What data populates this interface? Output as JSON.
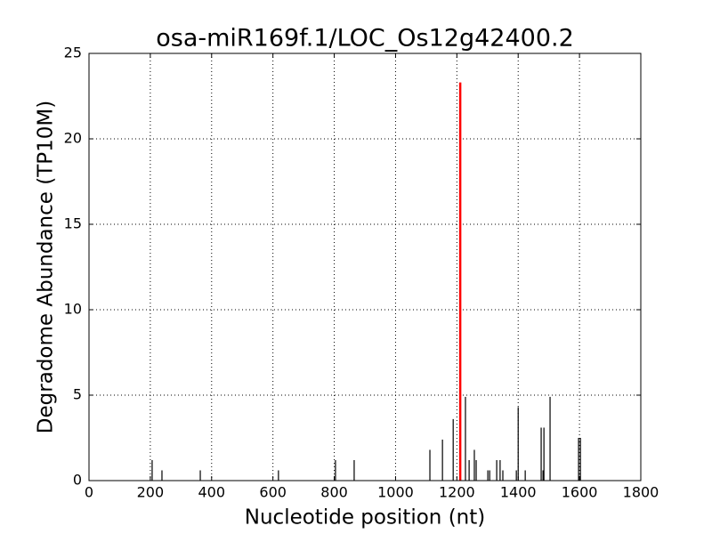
{
  "chart_data": {
    "type": "stem",
    "title": "osa-miR169f.1/LOC_Os12g42400.2",
    "x_label": "Nucleotide position (nt)",
    "y_label": "Degradome Abundance (TP10M)",
    "series": [
      {
        "color": "#000000",
        "x": [
          206,
          238,
          363,
          618,
          804,
          865,
          1112,
          1153,
          1188,
          1228,
          1240,
          1257,
          1263,
          1301,
          1307,
          1330,
          1341,
          1350,
          1394,
          1400,
          1423,
          1475,
          1481,
          1484,
          1504,
          1597,
          1603
        ],
        "values": [
          1.2,
          0.6,
          0.6,
          0.6,
          1.2,
          1.2,
          1.8,
          2.4,
          3.6,
          4.9,
          1.2,
          1.8,
          1.2,
          0.6,
          0.6,
          1.2,
          1.2,
          0.6,
          0.6,
          4.3,
          0.6,
          3.1,
          0.6,
          3.1,
          4.9,
          2.5,
          2.5
        ]
      },
      {
        "color": "#ff0000",
        "x": [
          1211
        ],
        "values": [
          23.3
        ]
      }
    ],
    "xlim": [
      0,
      1800
    ],
    "xticks": [
      0,
      200,
      400,
      600,
      800,
      1000,
      1200,
      1400,
      1600,
      1800
    ],
    "ylim": [
      0,
      25
    ],
    "yticks": [
      0,
      5,
      10,
      15,
      20,
      25
    ],
    "grid": true
  }
}
